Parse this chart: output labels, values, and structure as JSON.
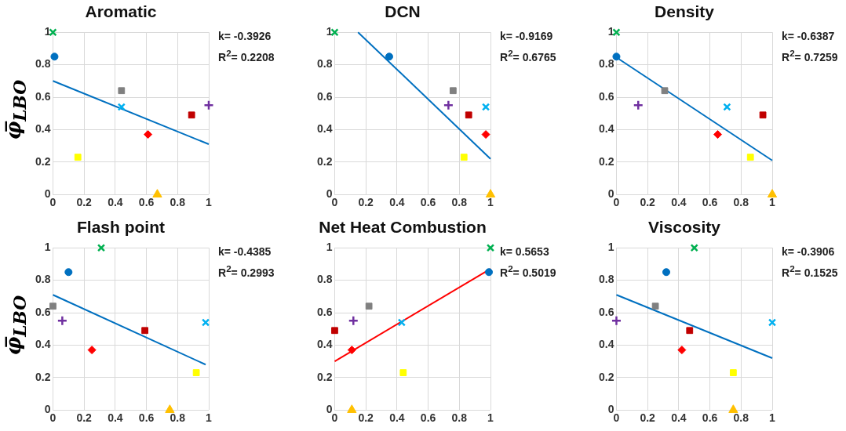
{
  "chart_data": [
    {
      "type": "scatter",
      "title": "Aromatic",
      "ylabel": "φ̅$_{LBO}$",
      "xlim": [
        0,
        1
      ],
      "ylim": [
        0,
        1
      ],
      "xticks": [
        0,
        0.2,
        0.4,
        0.6,
        0.8,
        1
      ],
      "yticks": [
        0,
        0.2,
        0.4,
        0.6,
        0.8,
        1
      ],
      "grid": true,
      "legend": false,
      "annotations": [
        "k= -0.3926",
        "R$^{2}$= 0.2208"
      ],
      "series": [
        {
          "color": "#00b050",
          "marker": "cross",
          "x": [
            0
          ],
          "values": [
            1
          ]
        },
        {
          "color": "#0070c0",
          "marker": "circle",
          "x": [
            0.01
          ],
          "values": [
            0.85
          ]
        },
        {
          "color": "#808080",
          "marker": "square",
          "x": [
            0.44
          ],
          "values": [
            0.64
          ]
        },
        {
          "color": "#7030a0",
          "marker": "plus",
          "x": [
            1.0
          ],
          "values": [
            0.55
          ]
        },
        {
          "color": "#00b0f0",
          "marker": "cross",
          "x": [
            0.44
          ],
          "values": [
            0.54
          ]
        },
        {
          "color": "#c00000",
          "marker": "square",
          "x": [
            0.89
          ],
          "values": [
            0.49
          ]
        },
        {
          "color": "#ff0000",
          "marker": "diamond",
          "x": [
            0.61
          ],
          "values": [
            0.37
          ]
        },
        {
          "color": "#ffff00",
          "marker": "square",
          "x": [
            0.16
          ],
          "values": [
            0.23
          ]
        },
        {
          "color": "#ffc000",
          "marker": "triangle",
          "x": [
            0.67
          ],
          "values": [
            0
          ]
        },
        {
          "type": "line",
          "color": "#0070c0",
          "marker": "none",
          "x": [
            0,
            1
          ],
          "values": [
            0.7,
            0.31
          ]
        }
      ]
    },
    {
      "type": "scatter",
      "title": "DCN",
      "xlim": [
        0,
        1
      ],
      "ylim": [
        0,
        1
      ],
      "xticks": [
        0,
        0.2,
        0.4,
        0.6,
        0.8,
        1
      ],
      "yticks": [
        0,
        0.2,
        0.4,
        0.6,
        0.8,
        1
      ],
      "grid": true,
      "legend": false,
      "annotations": [
        "k= -0.9169",
        "R$^{2}$= 0.6765"
      ],
      "series": [
        {
          "color": "#00b050",
          "marker": "cross",
          "x": [
            0
          ],
          "values": [
            1
          ]
        },
        {
          "color": "#0070c0",
          "marker": "circle",
          "x": [
            0.35
          ],
          "values": [
            0.85
          ]
        },
        {
          "color": "#808080",
          "marker": "square",
          "x": [
            0.76
          ],
          "values": [
            0.64
          ]
        },
        {
          "color": "#7030a0",
          "marker": "plus",
          "x": [
            0.73
          ],
          "values": [
            0.55
          ]
        },
        {
          "color": "#00b0f0",
          "marker": "cross",
          "x": [
            0.97
          ],
          "values": [
            0.54
          ]
        },
        {
          "color": "#c00000",
          "marker": "square",
          "x": [
            0.86
          ],
          "values": [
            0.49
          ]
        },
        {
          "color": "#ff0000",
          "marker": "diamond",
          "x": [
            0.97
          ],
          "values": [
            0.37
          ]
        },
        {
          "color": "#ffff00",
          "marker": "square",
          "x": [
            0.83
          ],
          "values": [
            0.23
          ]
        },
        {
          "color": "#ffc000",
          "marker": "triangle",
          "x": [
            1.0
          ],
          "values": [
            0
          ]
        },
        {
          "type": "line",
          "color": "#0070c0",
          "marker": "none",
          "x": [
            0.15,
            1
          ],
          "values": [
            1.0,
            0.22
          ]
        }
      ]
    },
    {
      "type": "scatter",
      "title": "Density",
      "xlim": [
        0,
        1
      ],
      "ylim": [
        0,
        1
      ],
      "xticks": [
        0,
        0.2,
        0.4,
        0.6,
        0.8,
        1
      ],
      "yticks": [
        0,
        0.2,
        0.4,
        0.6,
        0.8,
        1
      ],
      "grid": true,
      "legend": false,
      "annotations": [
        "k= -0.6387",
        "R$^{2}$= 0.7259"
      ],
      "series": [
        {
          "color": "#00b050",
          "marker": "cross",
          "x": [
            0
          ],
          "values": [
            1
          ]
        },
        {
          "color": "#0070c0",
          "marker": "circle",
          "x": [
            0
          ],
          "values": [
            0.85
          ]
        },
        {
          "color": "#808080",
          "marker": "square",
          "x": [
            0.31
          ],
          "values": [
            0.64
          ]
        },
        {
          "color": "#7030a0",
          "marker": "plus",
          "x": [
            0.14
          ],
          "values": [
            0.55
          ]
        },
        {
          "color": "#00b0f0",
          "marker": "cross",
          "x": [
            0.71
          ],
          "values": [
            0.54
          ]
        },
        {
          "color": "#c00000",
          "marker": "square",
          "x": [
            0.94
          ],
          "values": [
            0.49
          ]
        },
        {
          "color": "#ff0000",
          "marker": "diamond",
          "x": [
            0.65
          ],
          "values": [
            0.37
          ]
        },
        {
          "color": "#ffff00",
          "marker": "square",
          "x": [
            0.86
          ],
          "values": [
            0.23
          ]
        },
        {
          "color": "#ffc000",
          "marker": "triangle",
          "x": [
            1.0
          ],
          "values": [
            0
          ]
        },
        {
          "type": "line",
          "color": "#0070c0",
          "marker": "none",
          "x": [
            0,
            1
          ],
          "values": [
            0.845,
            0.21
          ]
        }
      ]
    },
    {
      "type": "scatter",
      "title": "Flash point",
      "ylabel": "φ̅$_{LBO}$",
      "xlim": [
        0,
        1
      ],
      "ylim": [
        0,
        1
      ],
      "xticks": [
        0,
        0.2,
        0.4,
        0.6,
        0.8,
        1
      ],
      "yticks": [
        0,
        0.2,
        0.4,
        0.6,
        0.8,
        1
      ],
      "grid": true,
      "legend": false,
      "annotations": [
        "k= -0.4385",
        "R$^{2}$= 0.2993"
      ],
      "series": [
        {
          "color": "#00b050",
          "marker": "cross",
          "x": [
            0.31
          ],
          "values": [
            1
          ]
        },
        {
          "color": "#0070c0",
          "marker": "circle",
          "x": [
            0.1
          ],
          "values": [
            0.85
          ]
        },
        {
          "color": "#808080",
          "marker": "square",
          "x": [
            0
          ],
          "values": [
            0.64
          ]
        },
        {
          "color": "#7030a0",
          "marker": "plus",
          "x": [
            0.06
          ],
          "values": [
            0.55
          ]
        },
        {
          "color": "#00b0f0",
          "marker": "cross",
          "x": [
            0.98
          ],
          "values": [
            0.54
          ]
        },
        {
          "color": "#c00000",
          "marker": "square",
          "x": [
            0.59
          ],
          "values": [
            0.49
          ]
        },
        {
          "color": "#ff0000",
          "marker": "diamond",
          "x": [
            0.25
          ],
          "values": [
            0.37
          ]
        },
        {
          "color": "#ffff00",
          "marker": "square",
          "x": [
            0.92
          ],
          "values": [
            0.23
          ]
        },
        {
          "color": "#ffc000",
          "marker": "triangle",
          "x": [
            0.75
          ],
          "values": [
            0
          ]
        },
        {
          "type": "line",
          "color": "#0070c0",
          "marker": "none",
          "x": [
            0,
            0.98
          ],
          "values": [
            0.71,
            0.28
          ]
        }
      ]
    },
    {
      "type": "scatter",
      "title": "Net Heat Combustion",
      "xlim": [
        0,
        1
      ],
      "ylim": [
        0,
        1
      ],
      "xticks": [
        0,
        0.2,
        0.4,
        0.6,
        0.8,
        1
      ],
      "yticks": [
        0,
        0.2,
        0.4,
        0.6,
        0.8,
        1
      ],
      "grid": true,
      "legend": false,
      "annotations": [
        "k= 0.5653",
        "R$^{2}$= 0.5019"
      ],
      "series": [
        {
          "color": "#00b050",
          "marker": "cross",
          "x": [
            1.0
          ],
          "values": [
            1
          ]
        },
        {
          "color": "#0070c0",
          "marker": "circle",
          "x": [
            0.99
          ],
          "values": [
            0.85
          ]
        },
        {
          "color": "#808080",
          "marker": "square",
          "x": [
            0.22
          ],
          "values": [
            0.64
          ]
        },
        {
          "color": "#7030a0",
          "marker": "plus",
          "x": [
            0.12
          ],
          "values": [
            0.55
          ]
        },
        {
          "color": "#00b0f0",
          "marker": "cross",
          "x": [
            0.43
          ],
          "values": [
            0.54
          ]
        },
        {
          "color": "#c00000",
          "marker": "square",
          "x": [
            0
          ],
          "values": [
            0.49
          ]
        },
        {
          "color": "#ff0000",
          "marker": "diamond",
          "x": [
            0.11
          ],
          "values": [
            0.37
          ]
        },
        {
          "color": "#ffff00",
          "marker": "square",
          "x": [
            0.44
          ],
          "values": [
            0.23
          ]
        },
        {
          "color": "#ffc000",
          "marker": "triangle",
          "x": [
            0.11
          ],
          "values": [
            0
          ]
        },
        {
          "type": "line",
          "color": "#ff0000",
          "marker": "none",
          "x": [
            0,
            1
          ],
          "values": [
            0.3,
            0.87
          ]
        }
      ]
    },
    {
      "type": "scatter",
      "title": "Viscosity",
      "xlim": [
        0,
        1
      ],
      "ylim": [
        0,
        1
      ],
      "xticks": [
        0,
        0.2,
        0.4,
        0.6,
        0.8,
        1
      ],
      "yticks": [
        0,
        0.2,
        0.4,
        0.6,
        0.8,
        1
      ],
      "grid": true,
      "legend": false,
      "annotations": [
        "k= -0.3906",
        "R$^{2}$= 0.1525"
      ],
      "series": [
        {
          "color": "#00b050",
          "marker": "cross",
          "x": [
            0.5
          ],
          "values": [
            1
          ]
        },
        {
          "color": "#0070c0",
          "marker": "circle",
          "x": [
            0.32
          ],
          "values": [
            0.85
          ]
        },
        {
          "color": "#808080",
          "marker": "square",
          "x": [
            0.25
          ],
          "values": [
            0.64
          ]
        },
        {
          "color": "#7030a0",
          "marker": "plus",
          "x": [
            0
          ],
          "values": [
            0.55
          ]
        },
        {
          "color": "#00b0f0",
          "marker": "cross",
          "x": [
            1.0
          ],
          "values": [
            0.54
          ]
        },
        {
          "color": "#c00000",
          "marker": "square",
          "x": [
            0.47
          ],
          "values": [
            0.49
          ]
        },
        {
          "color": "#ff0000",
          "marker": "diamond",
          "x": [
            0.42
          ],
          "values": [
            0.37
          ]
        },
        {
          "color": "#ffff00",
          "marker": "square",
          "x": [
            0.75
          ],
          "values": [
            0.23
          ]
        },
        {
          "color": "#ffc000",
          "marker": "triangle",
          "x": [
            0.75
          ],
          "values": [
            0
          ]
        },
        {
          "type": "line",
          "color": "#0070c0",
          "marker": "none",
          "x": [
            0,
            1
          ],
          "values": [
            0.71,
            0.32
          ]
        }
      ]
    }
  ]
}
